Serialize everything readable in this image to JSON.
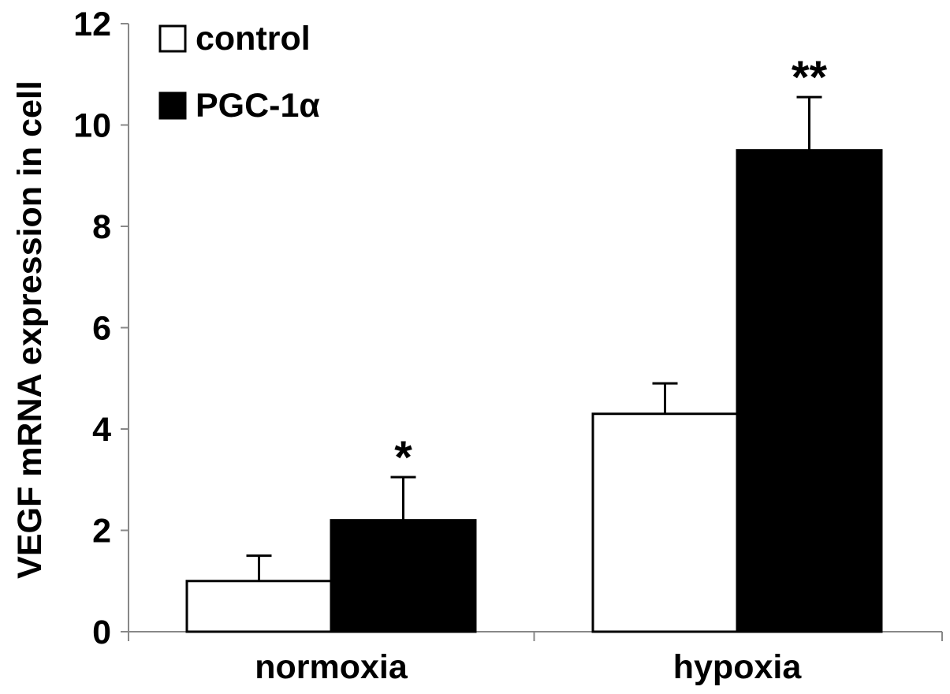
{
  "chart_data": {
    "type": "bar",
    "title": "",
    "xlabel": "",
    "ylabel": "VEGF mRNA expression in cell",
    "categories": [
      "normoxia",
      "hypoxia"
    ],
    "series": [
      {
        "name": "control",
        "values": [
          1.0,
          4.3
        ],
        "errors": [
          0.5,
          0.6
        ],
        "color": "#ffffff"
      },
      {
        "name": "PGC-1α",
        "values": [
          2.2,
          9.5
        ],
        "errors": [
          0.85,
          1.05
        ],
        "color": "#000000"
      }
    ],
    "annotations": [
      {
        "category": "normoxia",
        "series": "PGC-1α",
        "text": "*"
      },
      {
        "category": "hypoxia",
        "series": "PGC-1α",
        "text": "**"
      }
    ],
    "ylim": [
      0,
      12
    ],
    "yticks": [
      0,
      2,
      4,
      6,
      8,
      10,
      12
    ],
    "grid": false,
    "legend_position": "top-left"
  }
}
